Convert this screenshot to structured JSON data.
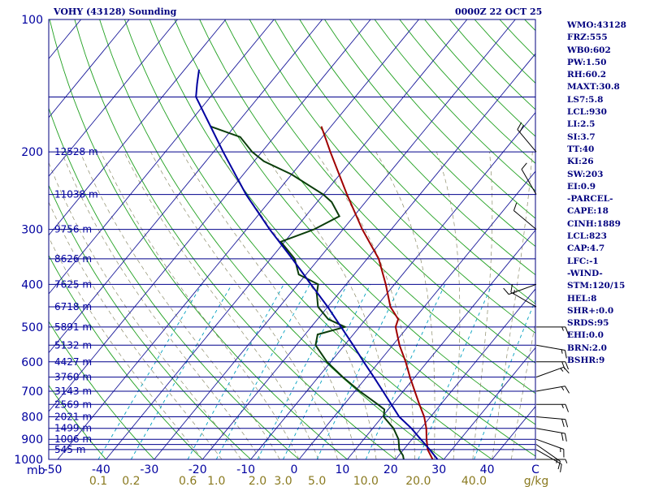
{
  "header": {
    "title": "VOHY (43128) Sounding",
    "datetime": "0000Z 22 OCT 25"
  },
  "indices": [
    "WMO:43128",
    "FRZ:555",
    "WB0:602",
    "PW:1.50",
    "RH:60.2",
    "MAXT:30.8",
    "LS7:5.8",
    "LCL:930",
    "LI:2.5",
    "SI:3.7",
    "TT:40",
    "KI:26",
    "SW:203",
    "EI:0.9",
    "-PARCEL-",
    "CAPE:18",
    "CINH:1889",
    "LCL:823",
    "CAP:4.7",
    "LFC:-1",
    "-WIND-",
    "STM:120/15",
    "HEL:8",
    "SHR+:0.0",
    "SRDS:95",
    "EHI:0.0",
    "BRN:2.0",
    "BSHR:9"
  ],
  "colors": {
    "temperature": "#a00000",
    "dewpoint": "#0a3d0a",
    "parcel": "#0000a0",
    "isobar": "#00008b",
    "isotherm": "#1a1a9a",
    "dry_adiabat": "#20a020",
    "moist_adiabat": "#8c8c6a",
    "mixing_ratio": "#00a0c0"
  },
  "chart_data": {
    "type": "line",
    "chart_kind": "skew-T log-P",
    "xlabel": "C",
    "ylabel": "mb",
    "mixing_ratio_label": "g/kg",
    "ylim": [
      1000,
      100
    ],
    "xlim_at_surface": [
      -50,
      50
    ],
    "y_scale": "log",
    "grid": true,
    "pressure_levels": [
      100,
      150,
      200,
      250,
      300,
      350,
      400,
      450,
      500,
      550,
      600,
      650,
      700,
      750,
      800,
      850,
      900,
      925,
      950,
      1000
    ],
    "pressure_tick_labels": [
      "100",
      "200",
      "300",
      "400",
      "500",
      "600",
      "700",
      "800",
      "900",
      "1000"
    ],
    "temperature_tick_labels": [
      "-50",
      "-40",
      "-30",
      "-20",
      "-10",
      "0",
      "10",
      "20",
      "30",
      "40",
      "C"
    ],
    "mixing_ratio_tick_labels": [
      "0.1",
      "0.2",
      "0.6",
      "1.0",
      "2.0",
      "3.0",
      "5.0",
      "10.0",
      "20.0",
      "40.0",
      "g/kg"
    ],
    "height_labels": [
      {
        "p": 200,
        "text": "12528 m"
      },
      {
        "p": 250,
        "text": "11038 m"
      },
      {
        "p": 300,
        "text": "9756 m"
      },
      {
        "p": 350,
        "text": "8626 m"
      },
      {
        "p": 400,
        "text": "7625 m"
      },
      {
        "p": 450,
        "text": "6718 m"
      },
      {
        "p": 500,
        "text": "5891 m"
      },
      {
        "p": 550,
        "text": "5132 m"
      },
      {
        "p": 600,
        "text": "4427 m"
      },
      {
        "p": 650,
        "text": "3760 m"
      },
      {
        "p": 700,
        "text": "3143 m"
      },
      {
        "p": 750,
        "text": "2569 m"
      },
      {
        "p": 800,
        "text": "2021 m"
      },
      {
        "p": 850,
        "text": "1499 m"
      },
      {
        "p": 900,
        "text": "1006 m"
      },
      {
        "p": 950,
        "text": "545 m"
      }
    ],
    "series": [
      {
        "key": "temperature",
        "points": [
          [
            1000,
            27.7
          ],
          [
            950,
            25.0
          ],
          [
            900,
            23.0
          ],
          [
            850,
            21.1
          ],
          [
            800,
            18.7
          ],
          [
            750,
            15.6
          ],
          [
            700,
            12.4
          ],
          [
            650,
            9.0
          ],
          [
            600,
            5.5
          ],
          [
            550,
            1.4
          ],
          [
            500,
            -2.5
          ],
          [
            480,
            -3.3
          ],
          [
            450,
            -7.0
          ],
          [
            400,
            -11.8
          ],
          [
            350,
            -17.6
          ],
          [
            300,
            -26.0
          ],
          [
            250,
            -35.1
          ],
          [
            200,
            -45.8
          ],
          [
            175,
            -52.0
          ]
        ]
      },
      {
        "key": "dewpoint",
        "points": [
          [
            1000,
            21.7
          ],
          [
            980,
            20.9
          ],
          [
            950,
            19.1
          ],
          [
            900,
            17.2
          ],
          [
            850,
            14.3
          ],
          [
            800,
            10.3
          ],
          [
            770,
            9.2
          ],
          [
            750,
            7.0
          ],
          [
            700,
            1.0
          ],
          [
            650,
            -4.9
          ],
          [
            600,
            -10.8
          ],
          [
            550,
            -16.0
          ],
          [
            520,
            -17.4
          ],
          [
            500,
            -13.0
          ],
          [
            480,
            -17.8
          ],
          [
            450,
            -22.0
          ],
          [
            420,
            -24.5
          ],
          [
            400,
            -25.8
          ],
          [
            380,
            -31.5
          ],
          [
            350,
            -35.0
          ],
          [
            320,
            -40.8
          ],
          [
            300,
            -36.0
          ],
          [
            280,
            -33.0
          ],
          [
            260,
            -37.0
          ],
          [
            250,
            -40.0
          ],
          [
            225,
            -50.0
          ],
          [
            210,
            -58.0
          ],
          [
            200,
            -62.0
          ],
          [
            185,
            -67.0
          ],
          [
            175,
            -75.0
          ]
        ]
      },
      {
        "key": "parcel",
        "points": [
          [
            1000,
            28.7
          ],
          [
            950,
            25.4
          ],
          [
            930,
            24.0
          ],
          [
            900,
            21.8
          ],
          [
            850,
            18.0
          ],
          [
            800,
            13.5
          ],
          [
            750,
            9.8
          ],
          [
            700,
            5.8
          ],
          [
            650,
            1.5
          ],
          [
            600,
            -3.2
          ],
          [
            550,
            -8.2
          ],
          [
            500,
            -13.8
          ],
          [
            450,
            -20.0
          ],
          [
            400,
            -27.3
          ],
          [
            350,
            -35.5
          ],
          [
            300,
            -45.2
          ],
          [
            250,
            -56.0
          ],
          [
            200,
            -68.0
          ],
          [
            150,
            -83.0
          ],
          [
            140,
            -85.0
          ],
          [
            130,
            -87.0
          ]
        ]
      }
    ],
    "winds": [
      {
        "p": 1000,
        "dir": 90,
        "spd": 5
      },
      {
        "p": 950,
        "dir": 120,
        "spd": 10
      },
      {
        "p": 925,
        "dir": 125,
        "spd": 15
      },
      {
        "p": 900,
        "dir": 110,
        "spd": 15
      },
      {
        "p": 850,
        "dir": 100,
        "spd": 20
      },
      {
        "p": 800,
        "dir": 95,
        "spd": 20
      },
      {
        "p": 750,
        "dir": 90,
        "spd": 15
      },
      {
        "p": 700,
        "dir": 80,
        "spd": 15
      },
      {
        "p": 650,
        "dir": 70,
        "spd": 15
      },
      {
        "p": 600,
        "dir": 90,
        "spd": 20
      },
      {
        "p": 550,
        "dir": 100,
        "spd": 15
      },
      {
        "p": 500,
        "dir": 90,
        "spd": 15
      },
      {
        "p": 450,
        "dir": 300,
        "spd": 15
      },
      {
        "p": 400,
        "dir": 250,
        "spd": 10
      },
      {
        "p": 300,
        "dir": 310,
        "spd": 10
      },
      {
        "p": 250,
        "dir": 330,
        "spd": 10
      },
      {
        "p": 200,
        "dir": 320,
        "spd": 20
      }
    ]
  }
}
